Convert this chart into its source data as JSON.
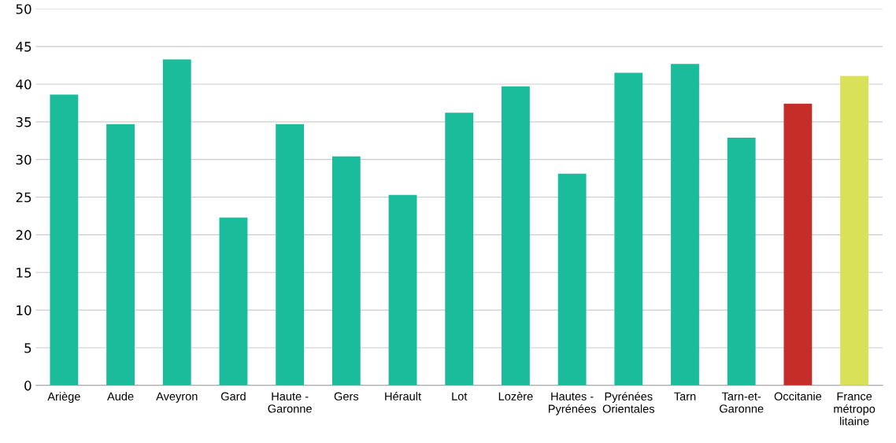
{
  "chart_data": {
    "type": "bar",
    "categories": [
      "Ariège",
      "Aude",
      "Aveyron",
      "Gard",
      "Haute -\nGaronne",
      "Gers",
      "Hérault",
      "Lot",
      "Lozère",
      "Hautes -\nPyrénées",
      "Pyrénées\nOrientales",
      "Tarn",
      "Tarn-et-\nGaronne",
      "Occitanie",
      "France\nmétropo\nlitaine"
    ],
    "values": [
      38.6,
      34.7,
      43.3,
      22.3,
      34.7,
      30.4,
      25.3,
      36.2,
      39.7,
      28.1,
      41.5,
      42.7,
      32.9,
      37.4,
      41.1
    ],
    "colors": [
      "#1abc9c",
      "#1abc9c",
      "#1abc9c",
      "#1abc9c",
      "#1abc9c",
      "#1abc9c",
      "#1abc9c",
      "#1abc9c",
      "#1abc9c",
      "#1abc9c",
      "#1abc9c",
      "#1abc9c",
      "#1abc9c",
      "#c42d28",
      "#d9e159"
    ],
    "ylim": [
      0,
      50
    ],
    "yticks": [
      0,
      5,
      10,
      15,
      20,
      25,
      30,
      35,
      40,
      45,
      50
    ],
    "grid": "y",
    "legend": false
  }
}
